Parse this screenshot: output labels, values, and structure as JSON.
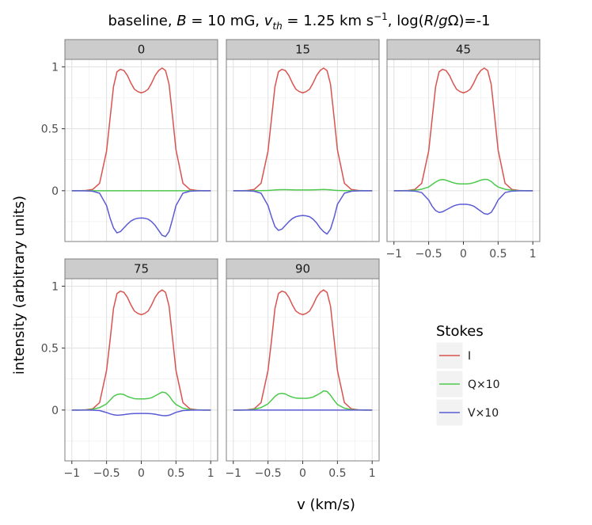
{
  "chart_data": {
    "type": "line",
    "title": "baseline, B = 10 mG, v_th = 1.25 km s⁻¹, log(R/gΩ)=-1",
    "title_parts": {
      "pre": "baseline, ",
      "B": "B",
      "b_eq": " = 10 mG, ",
      "v": "v",
      "v_sub": "th",
      "v_eq": " = 1.25 km s",
      "v_sup": "−1",
      "log_pre": ", log(",
      "R": "R",
      "slash": "/",
      "g": "g",
      "log_post": "Ω)=-1"
    },
    "xlabel": "v (km/s)",
    "ylabel": "intensity (arbitrary units)",
    "xlim": [
      -1.1,
      1.1
    ],
    "ylim": [
      -0.41,
      1.06
    ],
    "x_ticks": [
      -1,
      -0.5,
      0,
      0.5,
      1
    ],
    "x_tick_labels": [
      "−1",
      "−0.5",
      "0",
      "0.5",
      "1"
    ],
    "y_ticks": [
      0,
      0.5,
      1
    ],
    "y_tick_labels": [
      "0",
      "0.5",
      "1"
    ],
    "grid": true,
    "legend": {
      "title": "Stokes",
      "position": "right",
      "entries": [
        {
          "label": "I",
          "color": "#d9534f"
        },
        {
          "label": "Q×10",
          "color": "#4cc94c"
        },
        {
          "label": "V×10",
          "color": "#5b5bd6"
        }
      ]
    },
    "x": [
      -1.0,
      -0.9,
      -0.8,
      -0.7,
      -0.6,
      -0.5,
      -0.45,
      -0.4,
      -0.35,
      -0.3,
      -0.25,
      -0.2,
      -0.15,
      -0.1,
      -0.05,
      0.0,
      0.05,
      0.1,
      0.15,
      0.2,
      0.25,
      0.3,
      0.35,
      0.4,
      0.45,
      0.5,
      0.6,
      0.7,
      0.8,
      0.9,
      1.0
    ],
    "panels": [
      {
        "label": "0",
        "series": [
          {
            "name": "I",
            "values": [
              0,
              0,
              0.002,
              0.01,
              0.06,
              0.32,
              0.58,
              0.84,
              0.96,
              0.98,
              0.97,
              0.93,
              0.87,
              0.82,
              0.8,
              0.79,
              0.8,
              0.82,
              0.87,
              0.93,
              0.97,
              0.99,
              0.97,
              0.86,
              0.6,
              0.33,
              0.06,
              0.01,
              0.002,
              0,
              0
            ]
          },
          {
            "name": "Q×10",
            "values": [
              0,
              0,
              0,
              0,
              0,
              0,
              0,
              0,
              0,
              0,
              0,
              0,
              0,
              0,
              0,
              0,
              0,
              0,
              0,
              0,
              0,
              0,
              0,
              0,
              0,
              0,
              0,
              0,
              0,
              0,
              0
            ]
          },
          {
            "name": "V×10",
            "values": [
              0,
              0,
              -0.001,
              -0.004,
              -0.02,
              -0.12,
              -0.22,
              -0.3,
              -0.34,
              -0.33,
              -0.3,
              -0.27,
              -0.245,
              -0.23,
              -0.222,
              -0.22,
              -0.222,
              -0.23,
              -0.25,
              -0.28,
              -0.32,
              -0.36,
              -0.37,
              -0.33,
              -0.23,
              -0.12,
              -0.02,
              -0.004,
              -0.001,
              0,
              0
            ]
          }
        ]
      },
      {
        "label": "15",
        "series": [
          {
            "name": "I",
            "values": [
              0,
              0,
              0.002,
              0.01,
              0.06,
              0.32,
              0.58,
              0.84,
              0.96,
              0.98,
              0.97,
              0.93,
              0.87,
              0.82,
              0.8,
              0.79,
              0.8,
              0.82,
              0.87,
              0.93,
              0.97,
              0.99,
              0.97,
              0.86,
              0.6,
              0.33,
              0.06,
              0.01,
              0.002,
              0,
              0
            ]
          },
          {
            "name": "Q×10",
            "values": [
              0,
              0,
              0,
              0,
              0.001,
              0.002,
              0.004,
              0.006,
              0.008,
              0.009,
              0.009,
              0.008,
              0.007,
              0.006,
              0.006,
              0.006,
              0.006,
              0.006,
              0.007,
              0.008,
              0.009,
              0.01,
              0.009,
              0.007,
              0.004,
              0.002,
              0.001,
              0,
              0,
              0,
              0
            ]
          },
          {
            "name": "V×10",
            "values": [
              0,
              0,
              -0.001,
              -0.004,
              -0.02,
              -0.12,
              -0.21,
              -0.29,
              -0.32,
              -0.31,
              -0.28,
              -0.25,
              -0.225,
              -0.21,
              -0.203,
              -0.2,
              -0.203,
              -0.21,
              -0.23,
              -0.26,
              -0.3,
              -0.33,
              -0.35,
              -0.31,
              -0.22,
              -0.11,
              -0.02,
              -0.004,
              -0.001,
              0,
              0
            ]
          }
        ]
      },
      {
        "label": "45",
        "series": [
          {
            "name": "I",
            "values": [
              0,
              0,
              0.002,
              0.01,
              0.06,
              0.32,
              0.58,
              0.84,
              0.96,
              0.98,
              0.97,
              0.93,
              0.87,
              0.82,
              0.8,
              0.79,
              0.8,
              0.82,
              0.87,
              0.93,
              0.97,
              0.99,
              0.97,
              0.86,
              0.6,
              0.33,
              0.06,
              0.01,
              0.002,
              0,
              0
            ]
          },
          {
            "name": "Q×10",
            "values": [
              0,
              0,
              0.001,
              0.004,
              0.012,
              0.03,
              0.05,
              0.07,
              0.085,
              0.09,
              0.085,
              0.075,
              0.065,
              0.058,
              0.055,
              0.055,
              0.055,
              0.058,
              0.065,
              0.075,
              0.085,
              0.092,
              0.09,
              0.075,
              0.05,
              0.03,
              0.012,
              0.004,
              0.001,
              0,
              0
            ]
          },
          {
            "name": "V×10",
            "values": [
              0,
              0,
              -0.001,
              -0.003,
              -0.015,
              -0.075,
              -0.125,
              -0.16,
              -0.175,
              -0.17,
              -0.155,
              -0.14,
              -0.125,
              -0.115,
              -0.11,
              -0.11,
              -0.11,
              -0.115,
              -0.125,
              -0.145,
              -0.165,
              -0.185,
              -0.19,
              -0.175,
              -0.13,
              -0.075,
              -0.015,
              -0.003,
              -0.001,
              0,
              0
            ]
          }
        ]
      },
      {
        "label": "75",
        "series": [
          {
            "name": "I",
            "values": [
              0,
              0,
              0.002,
              0.01,
              0.06,
              0.32,
              0.56,
              0.82,
              0.94,
              0.96,
              0.95,
              0.91,
              0.85,
              0.8,
              0.78,
              0.77,
              0.78,
              0.8,
              0.85,
              0.91,
              0.95,
              0.97,
              0.95,
              0.84,
              0.58,
              0.32,
              0.06,
              0.01,
              0.002,
              0,
              0
            ]
          },
          {
            "name": "Q×10",
            "values": [
              0,
              0,
              0.001,
              0.006,
              0.02,
              0.05,
              0.08,
              0.11,
              0.125,
              0.13,
              0.125,
              0.11,
              0.1,
              0.092,
              0.09,
              0.09,
              0.09,
              0.093,
              0.1,
              0.115,
              0.13,
              0.145,
              0.14,
              0.115,
              0.075,
              0.045,
              0.015,
              0.004,
              0.001,
              0,
              0
            ]
          },
          {
            "name": "V×10",
            "values": [
              0,
              0,
              0,
              -0.001,
              -0.004,
              -0.02,
              -0.03,
              -0.038,
              -0.042,
              -0.04,
              -0.037,
              -0.033,
              -0.03,
              -0.028,
              -0.027,
              -0.027,
              -0.027,
              -0.028,
              -0.03,
              -0.034,
              -0.039,
              -0.044,
              -0.046,
              -0.042,
              -0.031,
              -0.018,
              -0.004,
              -0.001,
              0,
              0,
              0
            ]
          }
        ]
      },
      {
        "label": "90",
        "series": [
          {
            "name": "I",
            "values": [
              0,
              0,
              0.002,
              0.01,
              0.06,
              0.32,
              0.56,
              0.82,
              0.94,
              0.96,
              0.95,
              0.91,
              0.85,
              0.8,
              0.78,
              0.77,
              0.78,
              0.8,
              0.85,
              0.91,
              0.95,
              0.97,
              0.95,
              0.84,
              0.58,
              0.32,
              0.06,
              0.01,
              0.002,
              0,
              0
            ]
          },
          {
            "name": "Q×10",
            "values": [
              0,
              0,
              0.001,
              0.006,
              0.02,
              0.05,
              0.08,
              0.11,
              0.13,
              0.135,
              0.13,
              0.115,
              0.105,
              0.097,
              0.095,
              0.095,
              0.095,
              0.098,
              0.105,
              0.12,
              0.135,
              0.155,
              0.15,
              0.12,
              0.08,
              0.045,
              0.015,
              0.004,
              0.001,
              0,
              0
            ]
          },
          {
            "name": "V×10",
            "values": [
              0,
              0,
              0,
              0,
              0,
              0,
              0,
              0,
              0,
              0,
              0,
              0,
              0,
              0,
              0,
              0,
              0,
              0,
              0,
              0,
              0,
              0,
              0,
              0,
              0,
              0,
              0,
              0,
              0,
              0,
              0
            ]
          }
        ]
      }
    ]
  }
}
